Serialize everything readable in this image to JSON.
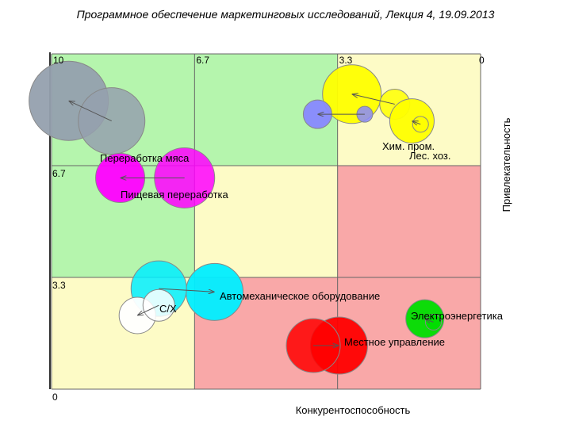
{
  "header": {
    "title": "Программное обеспечение маркетинговых исследований,  Лекция 4,  19.09.2013"
  },
  "chart_data": {
    "type": "bubble-matrix",
    "xlabel": "Конкурентоспособность",
    "ylabel": "Привлекательность",
    "x_reversed": true,
    "xlim": [
      10,
      0
    ],
    "ylim": [
      0,
      10
    ],
    "x_ticks": [
      "10",
      "6.7",
      "3.3",
      "0"
    ],
    "y_ticks": [
      "6.7",
      "3.3",
      "0"
    ],
    "zones": {
      "green": "#b5f5ad",
      "yellow": "#fdfbc6",
      "red": "#f9a8a8"
    },
    "series": [
      {
        "label": "Переработка мяса",
        "color": "#95a0ae",
        "from": {
          "x": 9.6,
          "y": 8.6,
          "size": 5.0
        },
        "to": {
          "x": 8.6,
          "y": 8.0,
          "size": 4.2
        }
      },
      {
        "label": "Пищевая переработка",
        "color": "#ff00ff",
        "from": {
          "x": 8.4,
          "y": 6.3,
          "size": 3.1
        },
        "to": {
          "x": 6.9,
          "y": 6.3,
          "size": 3.8
        }
      },
      {
        "label": "Хим. пром.",
        "color": "#ffff00",
        "from": {
          "x": 3.0,
          "y": 8.8,
          "size": 3.7
        },
        "to": {
          "x": 2.0,
          "y": 8.5,
          "size": 1.9
        }
      },
      {
        "label": "",
        "color": "#8888ff",
        "from": {
          "x": 3.8,
          "y": 8.2,
          "size": 1.8
        },
        "to": {
          "x": 2.7,
          "y": 8.2,
          "size": 1.0
        }
      },
      {
        "label": "Лес. хоз.",
        "color": "#ffff00",
        "from": {
          "x": 1.6,
          "y": 8.0,
          "size": 2.8
        },
        "to": {
          "x": 1.4,
          "y": 7.9,
          "size": 1.0
        }
      },
      {
        "label": "Автомеханическое оборудование",
        "color": "#00eeff",
        "from": {
          "x": 6.2,
          "y": 2.9,
          "size": 3.6
        },
        "to": {
          "x": 7.5,
          "y": 3.0,
          "size": 3.5
        }
      },
      {
        "label": "С/Х",
        "color": "#ffffff",
        "from": {
          "x": 8.0,
          "y": 2.2,
          "size": 2.3
        },
        "to": {
          "x": 7.5,
          "y": 2.5,
          "size": 2.0
        }
      },
      {
        "label": "Электроэнергетика",
        "color": "#00dd00",
        "from": {
          "x": 1.3,
          "y": 2.1,
          "size": 2.4
        },
        "to": {
          "x": 1.1,
          "y": 2.0,
          "size": 1.0
        }
      },
      {
        "label": "Местное управление",
        "color": "#ff0000",
        "from": {
          "x": 3.3,
          "y": 1.3,
          "size": 3.6
        },
        "to": {
          "x": 3.9,
          "y": 1.3,
          "size": 3.4
        }
      }
    ]
  }
}
